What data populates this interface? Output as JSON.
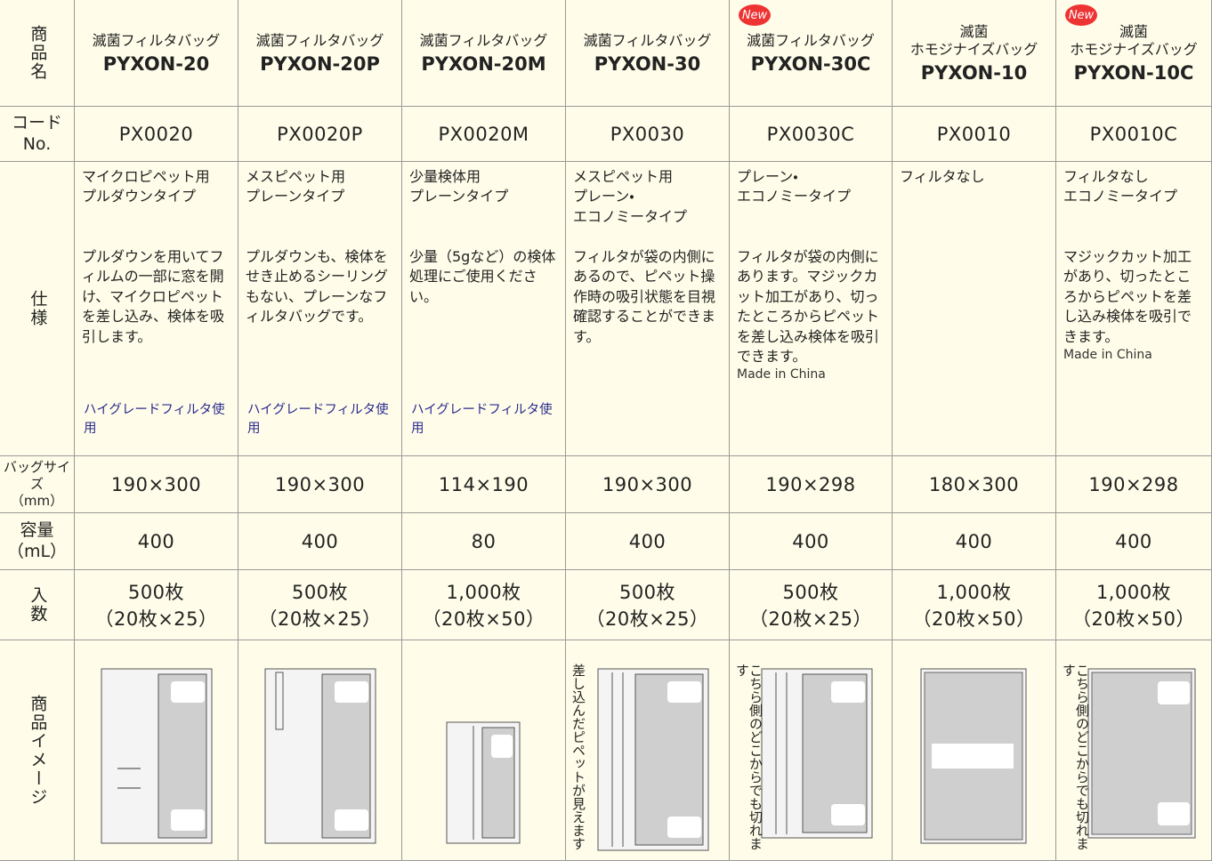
{
  "row_labels": [
    "商品名",
    "コード\nNo.",
    "仕様",
    "バッグサイズ\n（mm）",
    "容量\n（mL）",
    "入数",
    "商品イメージ"
  ],
  "products": [
    {
      "category": "滅菌フィルタバッグ",
      "name": "PYXON-20",
      "code": "PX0020",
      "type": "マイクロピペット用\nプルダウンタイプ",
      "description": "プルダウンを用いてフィルムの一部に窓を開け、マイクロピペットを差し込み、検体を吸引します。",
      "note": "ハイグレードフィルタ使用",
      "size": "190×300",
      "capacity": 400,
      "quantity": "500枚",
      "pack": "（20枚×25）"
    },
    {
      "category": "滅菌フィルタバッグ",
      "name": "PYXON-20P",
      "code": "PX0020P",
      "type": "メスピペット用\nプレーンタイプ",
      "description": "プルダウンも、検体をせき止めるシーリングもない、プレーンなフィルタバッグです。",
      "note": "ハイグレードフィルタ使用",
      "size": "190×300",
      "capacity": 400,
      "quantity": "500枚",
      "pack": "（20枚×25）"
    },
    {
      "category": "滅菌フィルタバッグ",
      "name": "PYXON-20M",
      "code": "PX0020M",
      "type": "少量検体用\nプレーンタイプ",
      "description": "少量（5gなど）の検体処理にご使用ください。",
      "note": "ハイグレードフィルタ使用",
      "size": "114×190",
      "capacity": 80,
      "quantity": "1,000枚",
      "pack": "（20枚×50）"
    },
    {
      "category": "滅菌フィルタバッグ",
      "name": "PYXON-30",
      "code": "PX0030",
      "type": "メスピペット用\nプレーン・\nエコノミータイプ",
      "description": "フィルタが袋の内側にあるので、ピペット操作時の吸引状態を目視確認することができます。",
      "size": "190×300",
      "capacity": 400,
      "quantity": "500枚",
      "pack": "（20枚×25）",
      "caption": "差し込んだピペットが見えます"
    },
    {
      "badge": "New",
      "category": "滅菌フィルタバッグ",
      "name": "PYXON-30C",
      "code": "PX0030C",
      "type": "プレーン・\nエコノミータイプ",
      "description": "フィルタが袋の内側にあります。マジックカット加工があり、切ったところからピペットを差し込み検体を吸引できます。",
      "origin": "Made in China",
      "size": "190×298",
      "capacity": 400,
      "quantity": "500枚",
      "pack": "（20枚×25）",
      "caption": "こちら側のどこからでも切れます"
    },
    {
      "category": "滅菌\nホモジナイズバッグ",
      "name": "PYXON-10",
      "code": "PX0010",
      "type": "フィルタなし",
      "size": "180×300",
      "capacity": 400,
      "quantity": "1,000枚",
      "pack": "（20枚×50）"
    },
    {
      "badge": "New",
      "category": "滅菌\nホモジナイズバッグ",
      "name": "PYXON-10C",
      "code": "PX0010C",
      "type": "フィルタなし\nエコノミータイプ",
      "description": "マジックカット加工があり、切ったところからピペットを差し込み検体を吸引できます。",
      "origin": "Made in China",
      "size": "190×298",
      "capacity": 400,
      "quantity": "1,000枚",
      "pack": "（20枚×50）",
      "caption": "こちら側のどこからでも切れます"
    }
  ]
}
